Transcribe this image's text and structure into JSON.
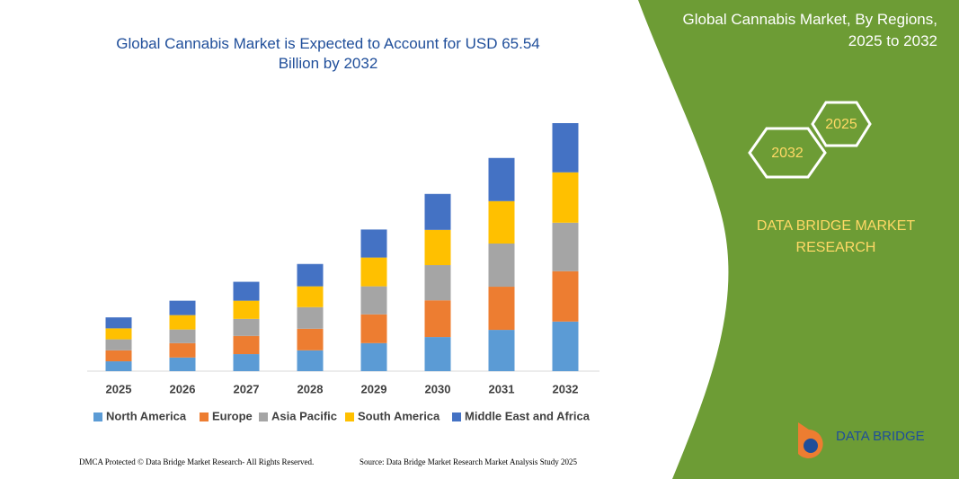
{
  "chart_data": {
    "type": "stacked_bar",
    "title": "Global Cannabis Market is Expected to Account for USD 65.54 Billion by 2032",
    "categories": [
      "2025",
      "2026",
      "2027",
      "2028",
      "2029",
      "2030",
      "2031",
      "2032"
    ],
    "series": [
      {
        "name": "North America",
        "color": "#5b9bd5",
        "values": [
          2.6,
          3.6,
          4.5,
          5.5,
          7.4,
          9.0,
          10.9,
          13.1
        ]
      },
      {
        "name": "Europe",
        "color": "#ed7d31",
        "values": [
          2.9,
          3.8,
          4.8,
          5.7,
          7.6,
          9.7,
          11.4,
          13.3
        ]
      },
      {
        "name": "Asia Pacific",
        "color": "#a5a5a5",
        "values": [
          2.9,
          3.6,
          4.5,
          5.7,
          7.4,
          9.3,
          11.4,
          12.8
        ]
      },
      {
        "name": "South America",
        "color": "#ffc000",
        "values": [
          2.9,
          3.8,
          4.8,
          5.5,
          7.6,
          9.3,
          11.2,
          13.3
        ]
      },
      {
        "name": "Middle East and Africa",
        "color": "#4472c4",
        "values": [
          2.9,
          3.8,
          5.0,
          5.9,
          7.4,
          9.5,
          11.4,
          13.0
        ]
      }
    ]
  },
  "panel": {
    "title": "Global Cannabis Market, By Regions, 2025 to 2032",
    "hex_left": "2032",
    "hex_right": "2025",
    "brand": "DATA BRIDGE MARKET RESEARCH",
    "logo": "DATA BRIDGE"
  },
  "footer": {
    "left": "DMCA Protected © Data Bridge Market Research- All Rights Reserved.",
    "right": "Source: Data Bridge Market Research Market Analysis Study 2025"
  }
}
